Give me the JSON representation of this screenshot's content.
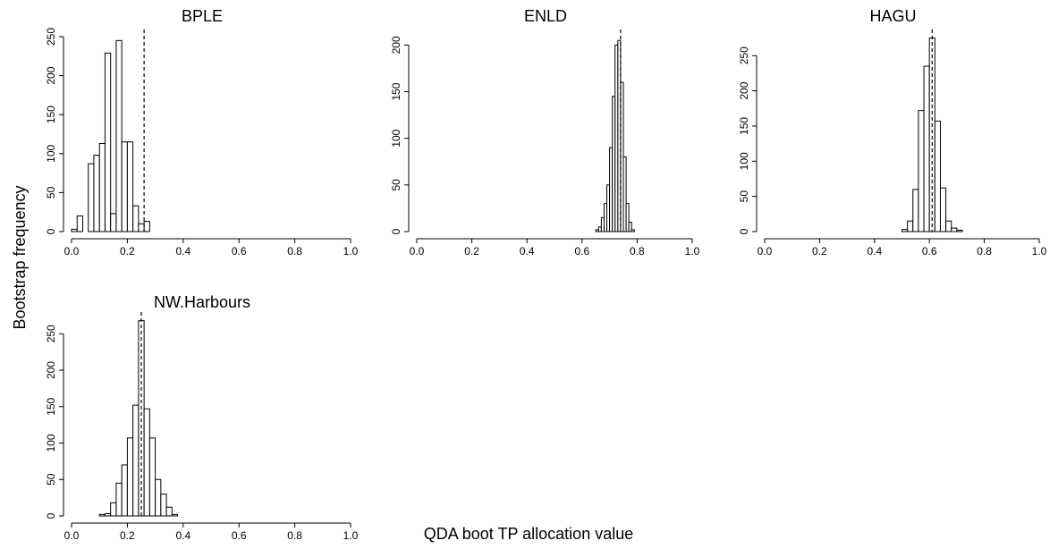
{
  "ylabel": "Bootstrap frequency",
  "xlabel": "QDA boot TP allocation value",
  "chart_data": [
    {
      "type": "histogram",
      "title": "BPLE",
      "color": "#ffffff",
      "bins": [
        0,
        0.02,
        0.04,
        0.06,
        0.08,
        0.1,
        0.12,
        0.14,
        0.16,
        0.18,
        0.2,
        0.22,
        0.24,
        0.26,
        0.28
      ],
      "values": [
        3,
        20,
        0,
        87,
        98,
        113,
        229,
        23,
        245,
        115,
        115,
        33,
        10,
        13
      ],
      "vline": 0.26,
      "xlim": [
        0,
        1
      ],
      "xticks": [
        {
          "value": 0,
          "label": "0.0"
        },
        0.2,
        0.4,
        0.6,
        0.8,
        {
          "value": 1,
          "label": "1.0"
        }
      ],
      "ylim": [
        0,
        250
      ],
      "yticks": [
        0,
        50,
        100,
        150,
        200,
        250
      ]
    },
    {
      "type": "histogram",
      "title": "ENLD",
      "color": "#ffffff",
      "bins": [
        0.65,
        0.66,
        0.67,
        0.68,
        0.69,
        0.7,
        0.71,
        0.72,
        0.73,
        0.74,
        0.75,
        0.76,
        0.77,
        0.78,
        0.79
      ],
      "values": [
        2,
        5,
        15,
        30,
        50,
        90,
        145,
        200,
        205,
        160,
        80,
        30,
        10,
        2
      ],
      "vline": 0.74,
      "xlim": [
        0,
        1
      ],
      "xticks": [
        {
          "value": 0,
          "label": "0.0"
        },
        0.2,
        0.4,
        0.6,
        0.8,
        {
          "value": 1,
          "label": "1.0"
        }
      ],
      "ylim": [
        0,
        209
      ],
      "yticks": [
        0,
        50,
        100,
        150,
        200
      ]
    },
    {
      "type": "histogram",
      "title": "HAGU",
      "color": "#ffffff",
      "bins": [
        0.5,
        0.52,
        0.54,
        0.56,
        0.58,
        0.6,
        0.62,
        0.64,
        0.66,
        0.68,
        0.7,
        0.72
      ],
      "values": [
        3,
        15,
        60,
        172,
        235,
        275,
        157,
        62,
        15,
        5,
        2
      ],
      "vline": 0.61,
      "xlim": [
        0,
        1
      ],
      "xticks": [
        {
          "value": 0,
          "label": "0.0"
        },
        0.2,
        0.4,
        0.6,
        0.8,
        {
          "value": 1,
          "label": "1.0"
        }
      ],
      "ylim": [
        0,
        277
      ],
      "yticks": [
        0,
        50,
        100,
        150,
        200,
        250
      ]
    },
    {
      "type": "histogram",
      "title": "NW.Harbours",
      "color": "#ffffff",
      "bins": [
        0.1,
        0.12,
        0.14,
        0.16,
        0.18,
        0.2,
        0.22,
        0.24,
        0.26,
        0.28,
        0.3,
        0.32,
        0.34,
        0.36,
        0.38
      ],
      "values": [
        2,
        3,
        18,
        45,
        70,
        107,
        152,
        268,
        147,
        107,
        50,
        30,
        12,
        2
      ],
      "vline": 0.25,
      "xlim": [
        0,
        1
      ],
      "xticks": [
        {
          "value": 0,
          "label": "0.0"
        },
        0.2,
        0.4,
        0.6,
        0.8,
        {
          "value": 1,
          "label": "1.0"
        }
      ],
      "ylim": [
        0,
        270
      ],
      "yticks": [
        0,
        50,
        100,
        150,
        200,
        250
      ]
    }
  ]
}
